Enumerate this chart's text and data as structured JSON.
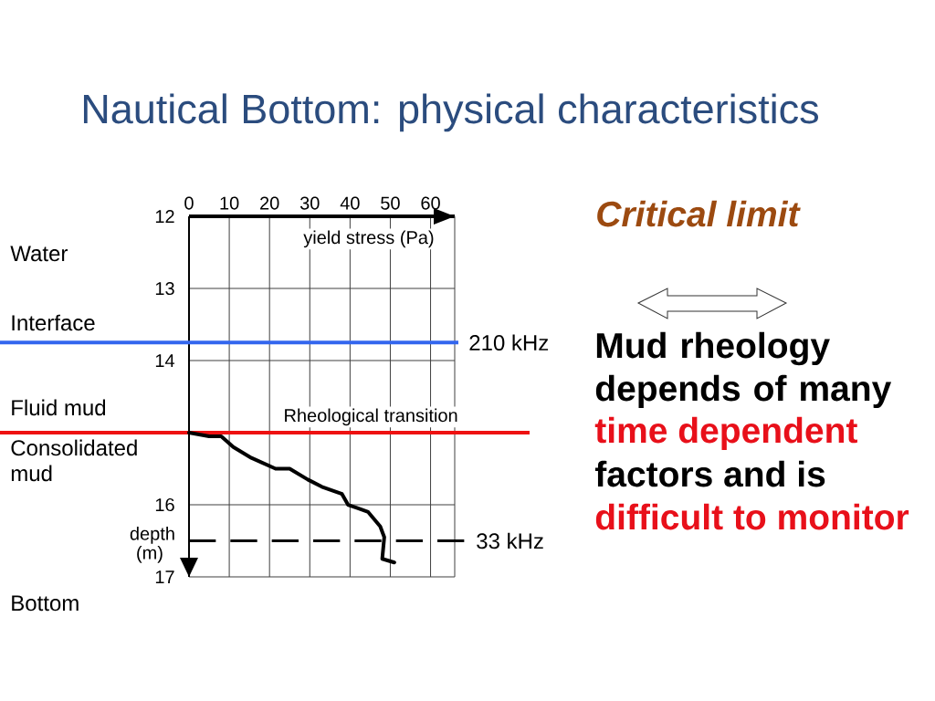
{
  "chart_data": {
    "type": "line",
    "title": "Nautical Bottom: physical characteristics",
    "xlabel": "yield stress (Pa)",
    "ylabel": "depth (m)",
    "x": [
      0,
      5,
      8,
      11,
      15.5,
      21.5,
      25,
      29.5,
      33,
      38,
      39.5,
      42,
      44.5,
      47.5,
      48.5,
      48,
      51
    ],
    "values": [
      15,
      15.05,
      15.05,
      15.2,
      15.35,
      15.5,
      15.5,
      15.65,
      15.75,
      15.85,
      16,
      16.05,
      16.1,
      16.3,
      16.45,
      16.75,
      16.8
    ],
    "color": "#000000",
    "xlim": [
      0,
      66
    ],
    "xticks": [
      0,
      10,
      20,
      30,
      40,
      50,
      60
    ],
    "ylim": [
      17,
      12
    ],
    "yticks": [
      12,
      13,
      14,
      16,
      17
    ],
    "grid": true,
    "ref_lines": [
      {
        "axis": "y",
        "value": 13.75,
        "label": "210 kHz",
        "color": "#3366ee"
      },
      {
        "axis": "y",
        "value": 15,
        "label": "Rheological transition",
        "color": "#ee1111"
      },
      {
        "axis": "y",
        "value": 16.5,
        "label": "33 kHz",
        "color": "#000000",
        "line_style": "dashed"
      }
    ],
    "annotations": [
      "Water",
      "Interface",
      "Fluid mud",
      "Consolidated mud",
      "Bottom",
      "Critical limit",
      "Mud rheology depends of many",
      "time dependent",
      "factors and is",
      "difficult to monitor"
    ]
  }
}
